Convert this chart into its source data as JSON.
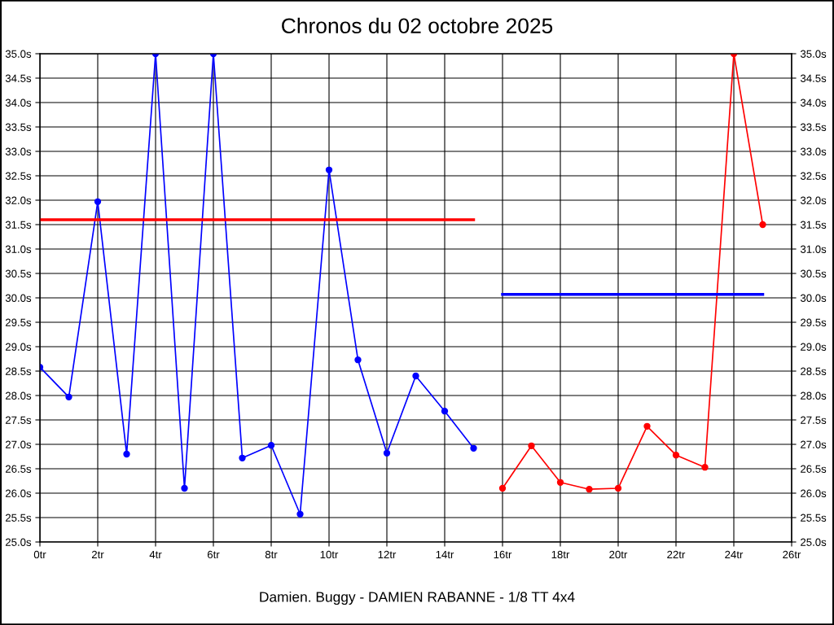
{
  "chart_data": {
    "type": "line",
    "title": "Chronos du 02 octobre 2025",
    "series": [
      {
        "color": "#0000ff",
        "x": [
          0,
          1,
          2,
          3,
          4,
          5,
          6,
          7,
          8,
          9,
          10,
          11,
          12,
          13,
          14,
          15
        ],
        "values": [
          28.58,
          27.97,
          31.97,
          26.8,
          35.0,
          26.1,
          35.0,
          26.72,
          26.98,
          25.57,
          32.62,
          28.73,
          26.82,
          28.4,
          27.68,
          26.92
        ]
      },
      {
        "color": "#ff0000",
        "x": [
          16,
          17,
          18,
          19,
          20,
          21,
          22,
          23,
          24,
          25
        ],
        "values": [
          26.1,
          26.97,
          26.22,
          26.08,
          26.1,
          27.37,
          26.78,
          26.53,
          35.0,
          31.5
        ]
      },
      {
        "color": "#ff0000",
        "x": [
          0,
          15
        ],
        "values": [
          31.6,
          31.6
        ],
        "marker": "none"
      },
      {
        "color": "#0000ff",
        "x": [
          16,
          25
        ],
        "values": [
          30.07,
          30.07
        ],
        "marker": "none"
      }
    ],
    "marker": "circle",
    "line_style": "solid",
    "grid": true,
    "legend": false,
    "xlim": [
      0,
      26
    ],
    "xticks": [
      {
        "value": 0,
        "label": "0tr"
      },
      {
        "value": 2,
        "label": "2tr"
      },
      {
        "value": 4,
        "label": "4tr"
      },
      {
        "value": 6,
        "label": "6tr"
      },
      {
        "value": 8,
        "label": "8tr"
      },
      {
        "value": 10,
        "label": "10tr"
      },
      {
        "value": 12,
        "label": "12tr"
      },
      {
        "value": 14,
        "label": "14tr"
      },
      {
        "value": 16,
        "label": "16tr"
      },
      {
        "value": 18,
        "label": "18tr"
      },
      {
        "value": 20,
        "label": "20tr"
      },
      {
        "value": 22,
        "label": "22tr"
      },
      {
        "value": 24,
        "label": "24tr"
      },
      {
        "value": 26,
        "label": "26tr"
      }
    ],
    "ylim": [
      25,
      35
    ],
    "yticks": [
      {
        "value": 25,
        "label": "25.0s"
      },
      {
        "value": 25.5,
        "label": "25.5s"
      },
      {
        "value": 26,
        "label": "26.0s"
      },
      {
        "value": 26.5,
        "label": "26.5s"
      },
      {
        "value": 27,
        "label": "27.0s"
      },
      {
        "value": 27.5,
        "label": "27.5s"
      },
      {
        "value": 28,
        "label": "28.0s"
      },
      {
        "value": 28.5,
        "label": "28.5s"
      },
      {
        "value": 29,
        "label": "29.0s"
      },
      {
        "value": 29.5,
        "label": "29.5s"
      },
      {
        "value": 30,
        "label": "30.0s"
      },
      {
        "value": 30.5,
        "label": "30.5s"
      },
      {
        "value": 31,
        "label": "31.0s"
      },
      {
        "value": 31.5,
        "label": "31.5s"
      },
      {
        "value": 32,
        "label": "32.0s"
      },
      {
        "value": 32.5,
        "label": "32.5s"
      },
      {
        "value": 33,
        "label": "33.0s"
      },
      {
        "value": 33.5,
        "label": "33.5s"
      },
      {
        "value": 34,
        "label": "34.0s"
      },
      {
        "value": 34.5,
        "label": "34.5s"
      },
      {
        "value": 35,
        "label": "35.0s"
      }
    ],
    "y2lim": [
      25,
      35
    ],
    "y2ticks": [
      {
        "value": 25,
        "label": "25.0s"
      },
      {
        "value": 25.5,
        "label": "25.5s"
      },
      {
        "value": 26,
        "label": "26.0s"
      },
      {
        "value": 26.5,
        "label": "26.5s"
      },
      {
        "value": 27,
        "label": "27.0s"
      },
      {
        "value": 27.5,
        "label": "27.5s"
      },
      {
        "value": 28,
        "label": "28.0s"
      },
      {
        "value": 28.5,
        "label": "28.5s"
      },
      {
        "value": 29,
        "label": "29.0s"
      },
      {
        "value": 29.5,
        "label": "29.5s"
      },
      {
        "value": 30,
        "label": "30.0s"
      },
      {
        "value": 30.5,
        "label": "30.5s"
      },
      {
        "value": 31,
        "label": "31.0s"
      },
      {
        "value": 31.5,
        "label": "31.5s"
      },
      {
        "value": 32,
        "label": "32.0s"
      },
      {
        "value": 32.5,
        "label": "32.5s"
      },
      {
        "value": 33,
        "label": "33.0s"
      },
      {
        "value": 33.5,
        "label": "33.5s"
      },
      {
        "value": 34,
        "label": "34.0s"
      },
      {
        "value": 34.5,
        "label": "34.5s"
      },
      {
        "value": 35,
        "label": "35.0s"
      }
    ],
    "annotations": [
      "Damien. Buggy - DAMIEN RABANNE - 1/8 TT 4x4"
    ]
  }
}
